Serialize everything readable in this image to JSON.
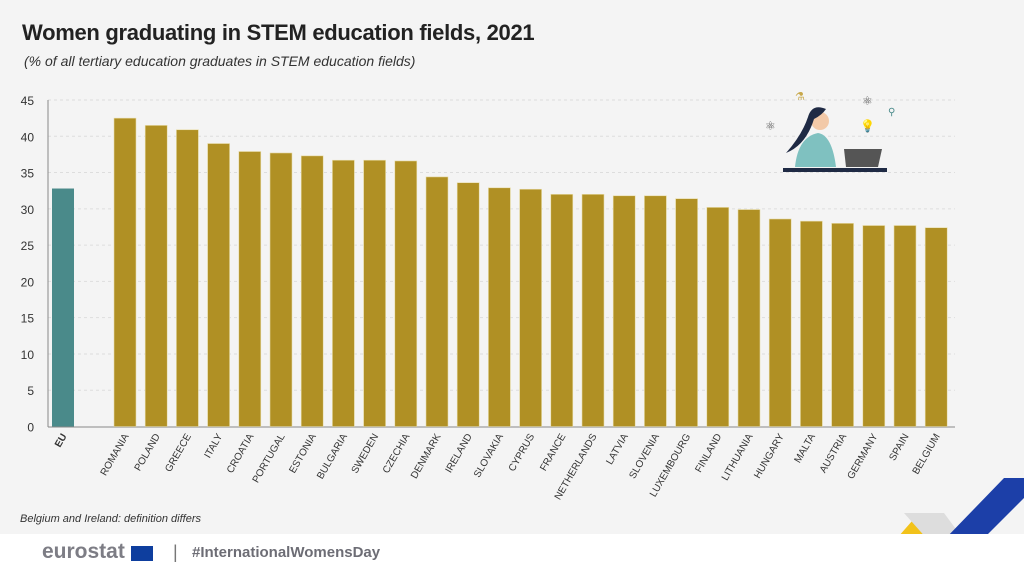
{
  "title": "Women graduating in STEM education fields, 2021",
  "subtitle": "(% of all tertiary education graduates in STEM education fields)",
  "note": "Belgium and Ireland: definition differs",
  "footer": {
    "logo": "eurostat",
    "hashtag": "#InternationalWomensDay"
  },
  "chart_data": {
    "type": "bar",
    "title": "Women graduating in STEM education fields, 2021",
    "ylim": [
      0,
      45
    ],
    "yticks": [
      0,
      5,
      10,
      15,
      20,
      25,
      30,
      35,
      40,
      45
    ],
    "grid": true,
    "categories": [
      "EU",
      "ROMANIA",
      "POLAND",
      "GREECE",
      "ITALY",
      "CROATIA",
      "PORTUGAL",
      "ESTONIA",
      "BULGARIA",
      "SWEDEN",
      "CZECHIA",
      "DENMARK",
      "IRELAND",
      "SLOVAKIA",
      "CYPRUS",
      "FRANCE",
      "NETHERLANDS",
      "LATVIA",
      "SLOVENIA",
      "LUXEMBOURG",
      "FINLAND",
      "LITHUANIA",
      "HUNGARY",
      "MALTA",
      "AUSTRIA",
      "GERMANY",
      "SPAIN",
      "BELGIUM"
    ],
    "values": [
      32.8,
      42.5,
      41.5,
      40.9,
      39.0,
      37.9,
      37.7,
      37.3,
      36.7,
      36.7,
      36.6,
      34.4,
      33.6,
      32.9,
      32.7,
      32.0,
      32.0,
      31.8,
      31.8,
      31.4,
      30.2,
      29.9,
      28.6,
      28.3,
      28.0,
      27.7,
      27.7,
      27.4
    ],
    "colors": {
      "eu": "#4a8a8a",
      "country": "#b09024"
    }
  }
}
